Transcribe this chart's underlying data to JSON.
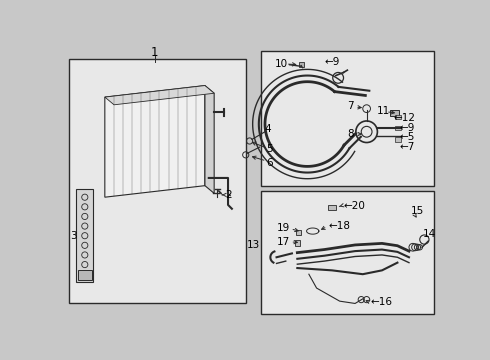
{
  "bg_color": "#eaeaea",
  "fig_bg": "#c8c8c8",
  "line_color": "#2a2a2a",
  "label_fontsize": 7.5,
  "box_bg": "#e8e8e8"
}
